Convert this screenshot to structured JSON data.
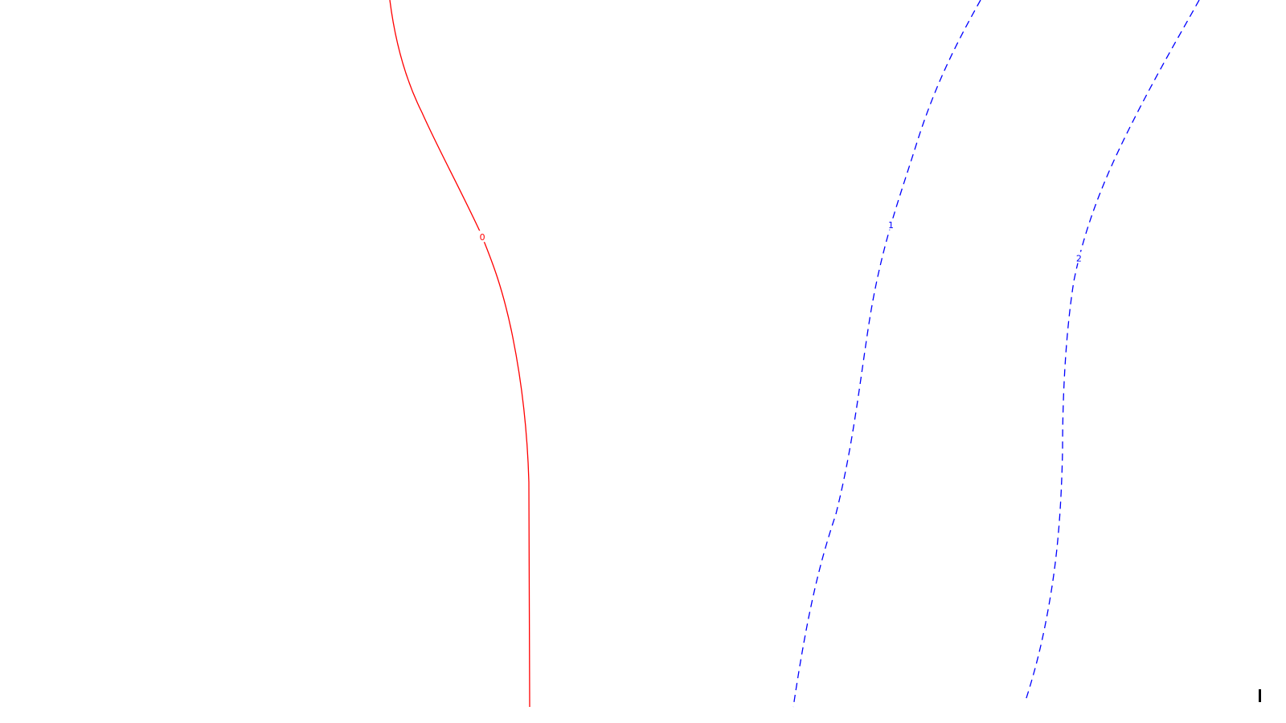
{
  "chart_data": {
    "type": "line",
    "title": "",
    "xlabel": "",
    "ylabel": "",
    "grid": false,
    "legend": "none",
    "contours": [
      {
        "level_label": "0",
        "color": "#ff0000",
        "style": "solid",
        "label_at": 0.35
      },
      {
        "level_label": "1",
        "color": "#0000ff",
        "style": "dashed",
        "label_at": 0.33
      },
      {
        "level_label": "2",
        "color": "#0000ff",
        "style": "dashed",
        "label_at": 0.39
      }
    ]
  }
}
